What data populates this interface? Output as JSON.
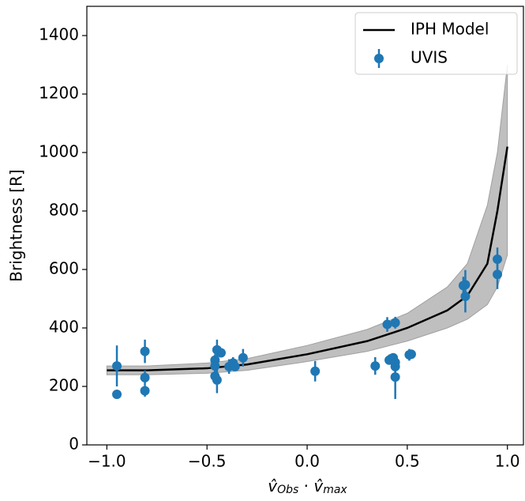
{
  "chart_data": {
    "type": "scatter",
    "x_label": [
      "v̂",
      "Obs",
      " · ",
      "v̂",
      "max"
    ],
    "y_label": "Brightness [R]",
    "xlim": [
      -1.1,
      1.08
    ],
    "ylim": [
      0,
      1500
    ],
    "xticks": [
      {
        "value": -1.0,
        "label": "−1.0"
      },
      {
        "value": -0.5,
        "label": "−0.5"
      },
      {
        "value": 0.0,
        "label": "0.0"
      },
      {
        "value": 0.5,
        "label": "0.5"
      },
      {
        "value": 1.0,
        "label": "1.0"
      }
    ],
    "yticks": [
      0,
      200,
      400,
      600,
      800,
      1000,
      1200,
      1400
    ],
    "legend": "upper right",
    "series": [
      {
        "name": "IPH Model",
        "type": "line",
        "color": "#000000",
        "band_color": "#bfbfbf",
        "x": [
          -1.0,
          -0.8,
          -0.5,
          -0.3,
          0.0,
          0.3,
          0.5,
          0.7,
          0.8,
          0.9,
          0.95,
          1.0
        ],
        "values": [
          255,
          255,
          262,
          275,
          310,
          355,
          400,
          460,
          510,
          620,
          800,
          1020
        ],
        "lower": [
          240,
          240,
          245,
          255,
          285,
          320,
          355,
          400,
          430,
          480,
          540,
          650
        ],
        "upper": [
          270,
          270,
          280,
          295,
          340,
          395,
          450,
          540,
          620,
          820,
          1000,
          1300
        ]
      },
      {
        "name": "UVIS",
        "type": "errorbar",
        "color": "#1f77b4",
        "x": [
          -0.95,
          -0.95,
          -0.81,
          -0.81,
          -0.81,
          -0.46,
          -0.46,
          -0.46,
          -0.45,
          -0.45,
          -0.43,
          -0.39,
          -0.37,
          -0.36,
          -0.32,
          0.04,
          0.34,
          0.4,
          0.41,
          0.42,
          0.43,
          0.44,
          0.44,
          0.44,
          0.44,
          0.51,
          0.52,
          0.78,
          0.79,
          0.79,
          0.95,
          0.95
        ],
        "values": [
          270,
          173,
          320,
          230,
          185,
          290,
          270,
          235,
          222,
          325,
          315,
          268,
          280,
          268,
          298,
          252,
          270,
          412,
          290,
          295,
          298,
          418,
          268,
          282,
          232,
          308,
          310,
          545,
          548,
          508,
          635,
          583
        ],
        "errors": [
          70,
          10,
          40,
          25,
          20,
          20,
          20,
          20,
          45,
          35,
          15,
          25,
          20,
          15,
          30,
          35,
          30,
          25,
          15,
          15,
          15,
          20,
          20,
          20,
          75,
          20,
          15,
          30,
          50,
          55,
          40,
          50
        ]
      }
    ]
  }
}
